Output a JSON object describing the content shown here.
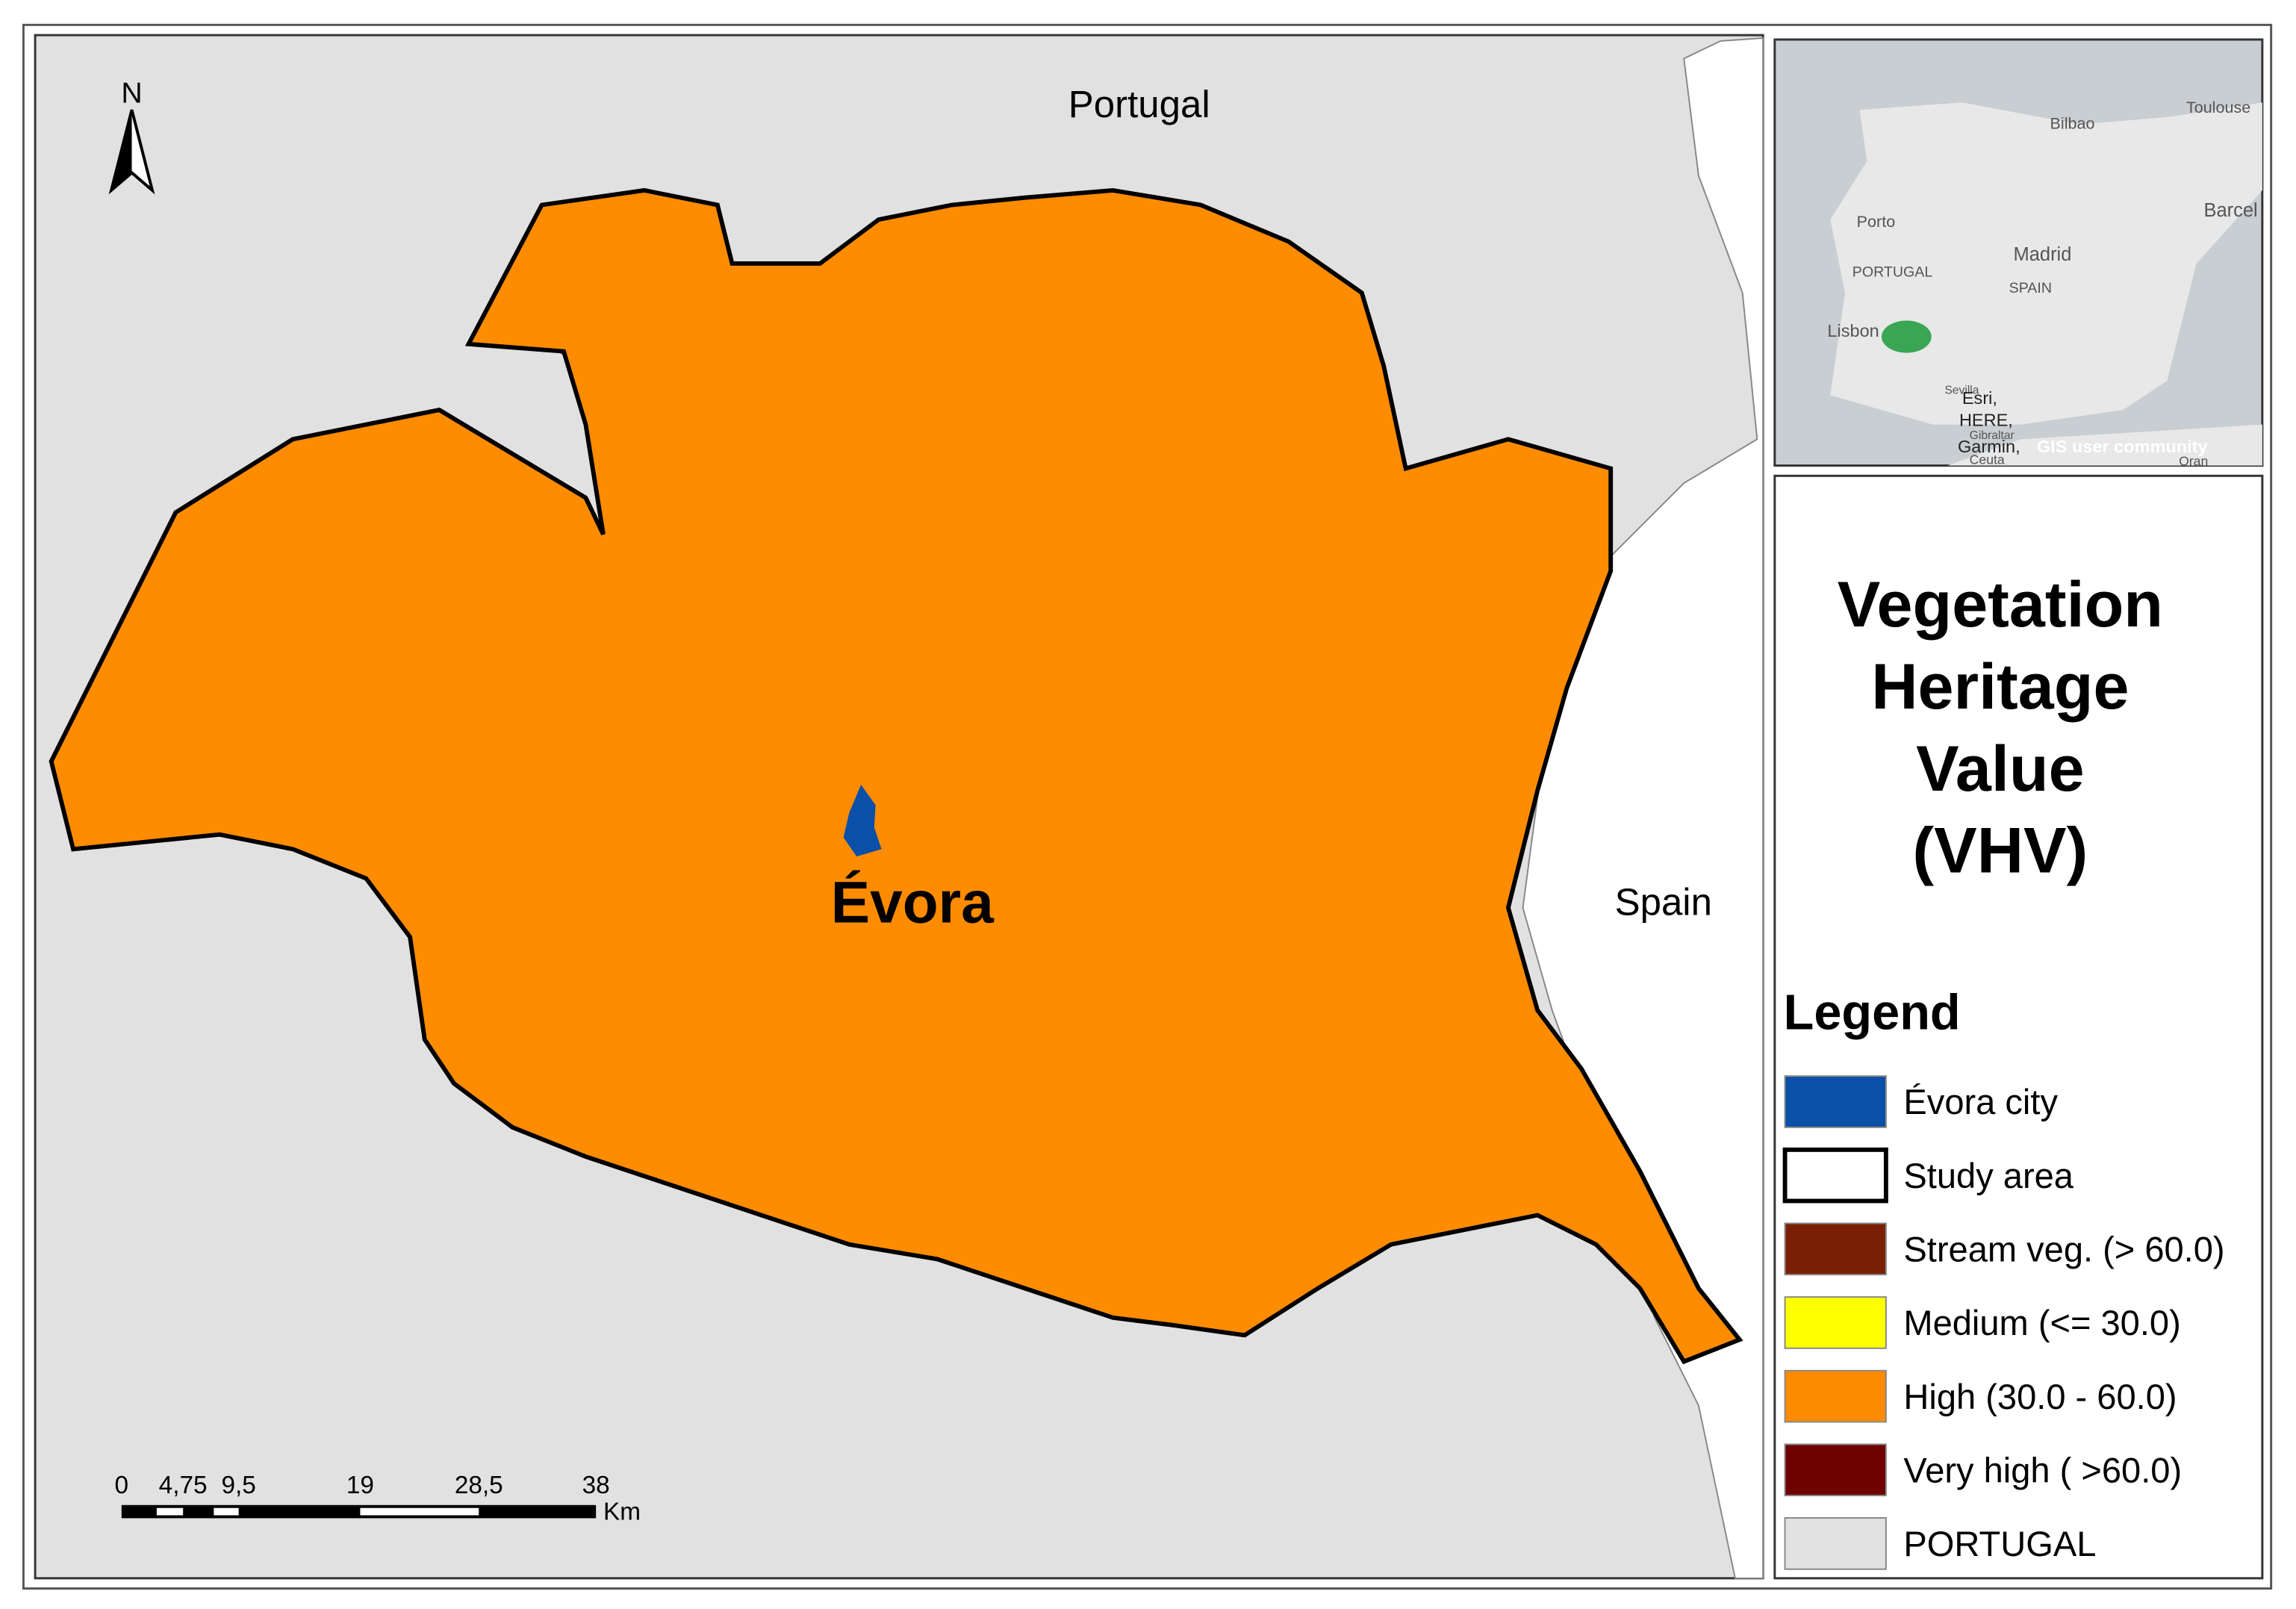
{
  "map": {
    "labels": {
      "north_arrow": "N",
      "country_north": "Portugal",
      "country_east": "Spain",
      "city": "Évora"
    },
    "scale_bar": {
      "ticks": [
        "0",
        "4,75",
        "9,5",
        "19",
        "28,5",
        "38"
      ],
      "unit": "Km"
    },
    "inset": {
      "labels": [
        "Toulouse",
        "Bilbao",
        "Porto",
        "Barcel",
        "Madrid",
        "PORTUGAL",
        "SPAIN",
        "Lisbon",
        "Sevilla",
        "Esri,",
        "HERE,",
        "Gibraltar",
        "Garmin,",
        "GIS user community",
        "Ceuta",
        "Oran"
      ],
      "study_area_color": "#3aa655"
    }
  },
  "legend": {
    "title_lines": [
      "Vegetation",
      "Heritage",
      "Value",
      "(VHV)"
    ],
    "heading": "Legend",
    "items": [
      {
        "label": "Évora city",
        "color": "#0a4fa8"
      },
      {
        "label": "Study area",
        "color": "#ffffff"
      },
      {
        "label": "Stream veg. (> 60.0)",
        "color": "#7a1f05"
      },
      {
        "label": "Medium (<= 30.0)",
        "color": "#ffff00"
      },
      {
        "label": "High (30.0 - 60.0)",
        "color": "#ff8c00"
      },
      {
        "label": "Very high ( >60.0)",
        "color": "#6e0000"
      },
      {
        "label": "PORTUGAL",
        "color": "#e1e1e1"
      }
    ]
  }
}
